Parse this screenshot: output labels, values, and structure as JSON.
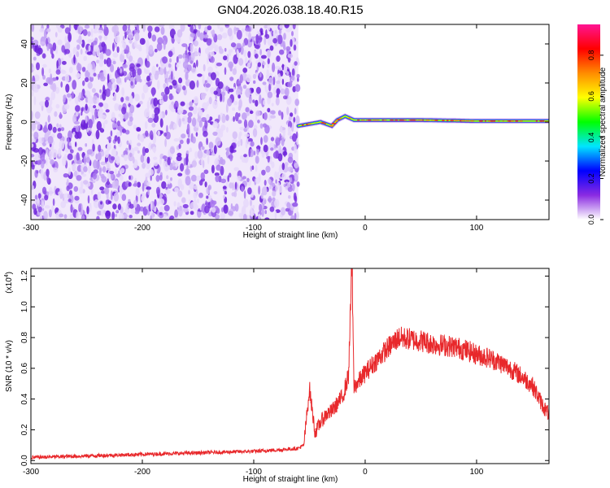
{
  "page": {
    "title": "GN04.2026.038.18.40.R15"
  },
  "chart_data": [
    {
      "type": "heatmap",
      "title": "",
      "xlabel": "Height of straight line (km)",
      "ylabel": "Frequency (Hz)",
      "xlim": [
        -300,
        165
      ],
      "ylim": [
        -50,
        50
      ],
      "x_ticks": [
        -300,
        -200,
        -100,
        0,
        100
      ],
      "y_ticks": [
        -40,
        -20,
        0,
        20,
        40
      ],
      "noise_region": {
        "x_range": [
          -300,
          -60
        ],
        "y_range": [
          -50,
          50
        ]
      },
      "signal_ridge": {
        "x_start": -60,
        "x_end": 165,
        "center_freq": [
          {
            "x": -60,
            "y": -2
          },
          {
            "x": -50,
            "y": -1
          },
          {
            "x": -40,
            "y": 0
          },
          {
            "x": -30,
            "y": -2
          },
          {
            "x": -25,
            "y": 1
          },
          {
            "x": -18,
            "y": 3
          },
          {
            "x": -10,
            "y": 1
          },
          {
            "x": 0,
            "y": 1
          },
          {
            "x": 50,
            "y": 1
          },
          {
            "x": 100,
            "y": 0.5
          },
          {
            "x": 165,
            "y": 0.5
          }
        ]
      },
      "colorbar": {
        "label": "Normalized spectral amplitude",
        "range": [
          0,
          0.95
        ],
        "ticks": [
          0.0,
          0.2,
          0.4,
          0.6,
          0.8
        ],
        "tick_labels": [
          "0.0",
          "0.2",
          "0.4",
          "0.6",
          "0.8"
        ],
        "colormap": [
          "#ffffff",
          "#8a2be2",
          "#0000ff",
          "#00e5ff",
          "#00ff00",
          "#ffff00",
          "#ff8c00",
          "#ff0000",
          "#ff1493"
        ]
      }
    },
    {
      "type": "line",
      "title": "",
      "xlabel": "Height of straight line (km)",
      "ylabel": "SNR (10 * v/v)",
      "y_multiplier": "(x10",
      "y_multiplier_exp": "4",
      "y_multiplier_close": ")",
      "xlim": [
        -300,
        165
      ],
      "ylim": [
        -0.02,
        1.25
      ],
      "x_ticks": [
        -300,
        -200,
        -100,
        0,
        100
      ],
      "y_ticks": [
        0.0,
        0.2,
        0.4,
        0.6,
        0.8,
        1.0,
        1.2
      ],
      "y_tick_labels": [
        "0.0",
        "0.2",
        "0.4",
        "0.6",
        "0.8",
        "1.0",
        "1.2"
      ],
      "series": [
        {
          "color": "#e8282b",
          "x": [
            -300,
            -250,
            -200,
            -150,
            -100,
            -75,
            -60,
            -55,
            -50,
            -45,
            -40,
            -35,
            -30,
            -25,
            -20,
            -15,
            -12,
            -10,
            -5,
            0,
            10,
            20,
            30,
            40,
            50,
            60,
            70,
            80,
            90,
            100,
            110,
            120,
            130,
            140,
            150,
            160,
            165
          ],
          "values": [
            0.02,
            0.03,
            0.04,
            0.05,
            0.06,
            0.07,
            0.08,
            0.1,
            0.47,
            0.18,
            0.25,
            0.3,
            0.32,
            0.37,
            0.42,
            0.55,
            1.25,
            0.48,
            0.52,
            0.57,
            0.65,
            0.73,
            0.8,
            0.79,
            0.78,
            0.76,
            0.75,
            0.74,
            0.72,
            0.69,
            0.67,
            0.64,
            0.6,
            0.55,
            0.49,
            0.35,
            0.3
          ]
        }
      ]
    }
  ]
}
